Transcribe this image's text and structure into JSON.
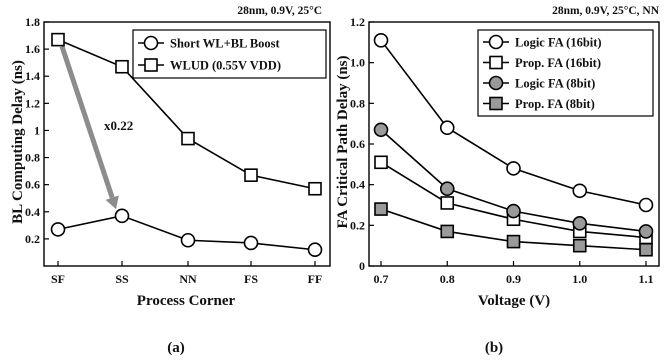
{
  "chart_data": [
    {
      "type": "line",
      "caption": "(a)",
      "condition": "28nm, 0.9V, 25°C",
      "xlabel": "Process Corner",
      "ylabel": "BL Computing Delay (ns)",
      "categories": [
        "SF",
        "SS",
        "NN",
        "FS",
        "FF"
      ],
      "ylim": [
        0,
        1.8
      ],
      "yticks": [
        "0.2",
        "0.4",
        "0.6",
        "0.8",
        "1",
        "1.2",
        "1.4",
        "1.6",
        "1.8"
      ],
      "legend_position": "top-right",
      "series": [
        {
          "name": "Short WL+BL Boost",
          "marker": "circle",
          "fill": "#ffffff",
          "values": [
            0.27,
            0.37,
            0.19,
            0.17,
            0.12
          ]
        },
        {
          "name": "WLUD (0.55V VDD)",
          "marker": "square",
          "fill": "#ffffff",
          "values": [
            1.67,
            1.47,
            0.94,
            0.67,
            0.57
          ]
        }
      ],
      "annotation": {
        "text": "x0.22",
        "arrow_color": "#8c8c8c",
        "from_category": "SF",
        "from_value": 1.62,
        "to_category": "SS",
        "to_value": 0.42
      }
    },
    {
      "type": "line",
      "caption": "(b)",
      "condition": "28nm, 0.9V, 25°C, NN",
      "xlabel": "Voltage (V)",
      "ylabel": "FA Critical Path Delay (ns)",
      "x": [
        0.7,
        0.8,
        0.9,
        1.0,
        1.1
      ],
      "xticks": [
        "0.7",
        "0.8",
        "0.9",
        "1.0",
        "1.1"
      ],
      "ylim": [
        0,
        1.2
      ],
      "yticks": [
        "0",
        "0.2",
        "0.4",
        "0.6",
        "0.8",
        "1.0",
        "1.2"
      ],
      "legend_position": "top-right",
      "series": [
        {
          "name": "Logic FA (16bit)",
          "marker": "circle",
          "fill": "#ffffff",
          "values": [
            1.11,
            0.68,
            0.48,
            0.37,
            0.3
          ]
        },
        {
          "name": "Prop. FA (16bit)",
          "marker": "square",
          "fill": "#ffffff",
          "values": [
            0.51,
            0.31,
            0.23,
            0.17,
            0.14
          ]
        },
        {
          "name": "Logic FA (8bit)",
          "marker": "circle",
          "fill": "#9a9a9a",
          "values": [
            0.67,
            0.38,
            0.27,
            0.21,
            0.17
          ]
        },
        {
          "name": "Prop. FA (8bit)",
          "marker": "square",
          "fill": "#9a9a9a",
          "values": [
            0.28,
            0.17,
            0.12,
            0.1,
            0.08
          ]
        }
      ]
    }
  ]
}
